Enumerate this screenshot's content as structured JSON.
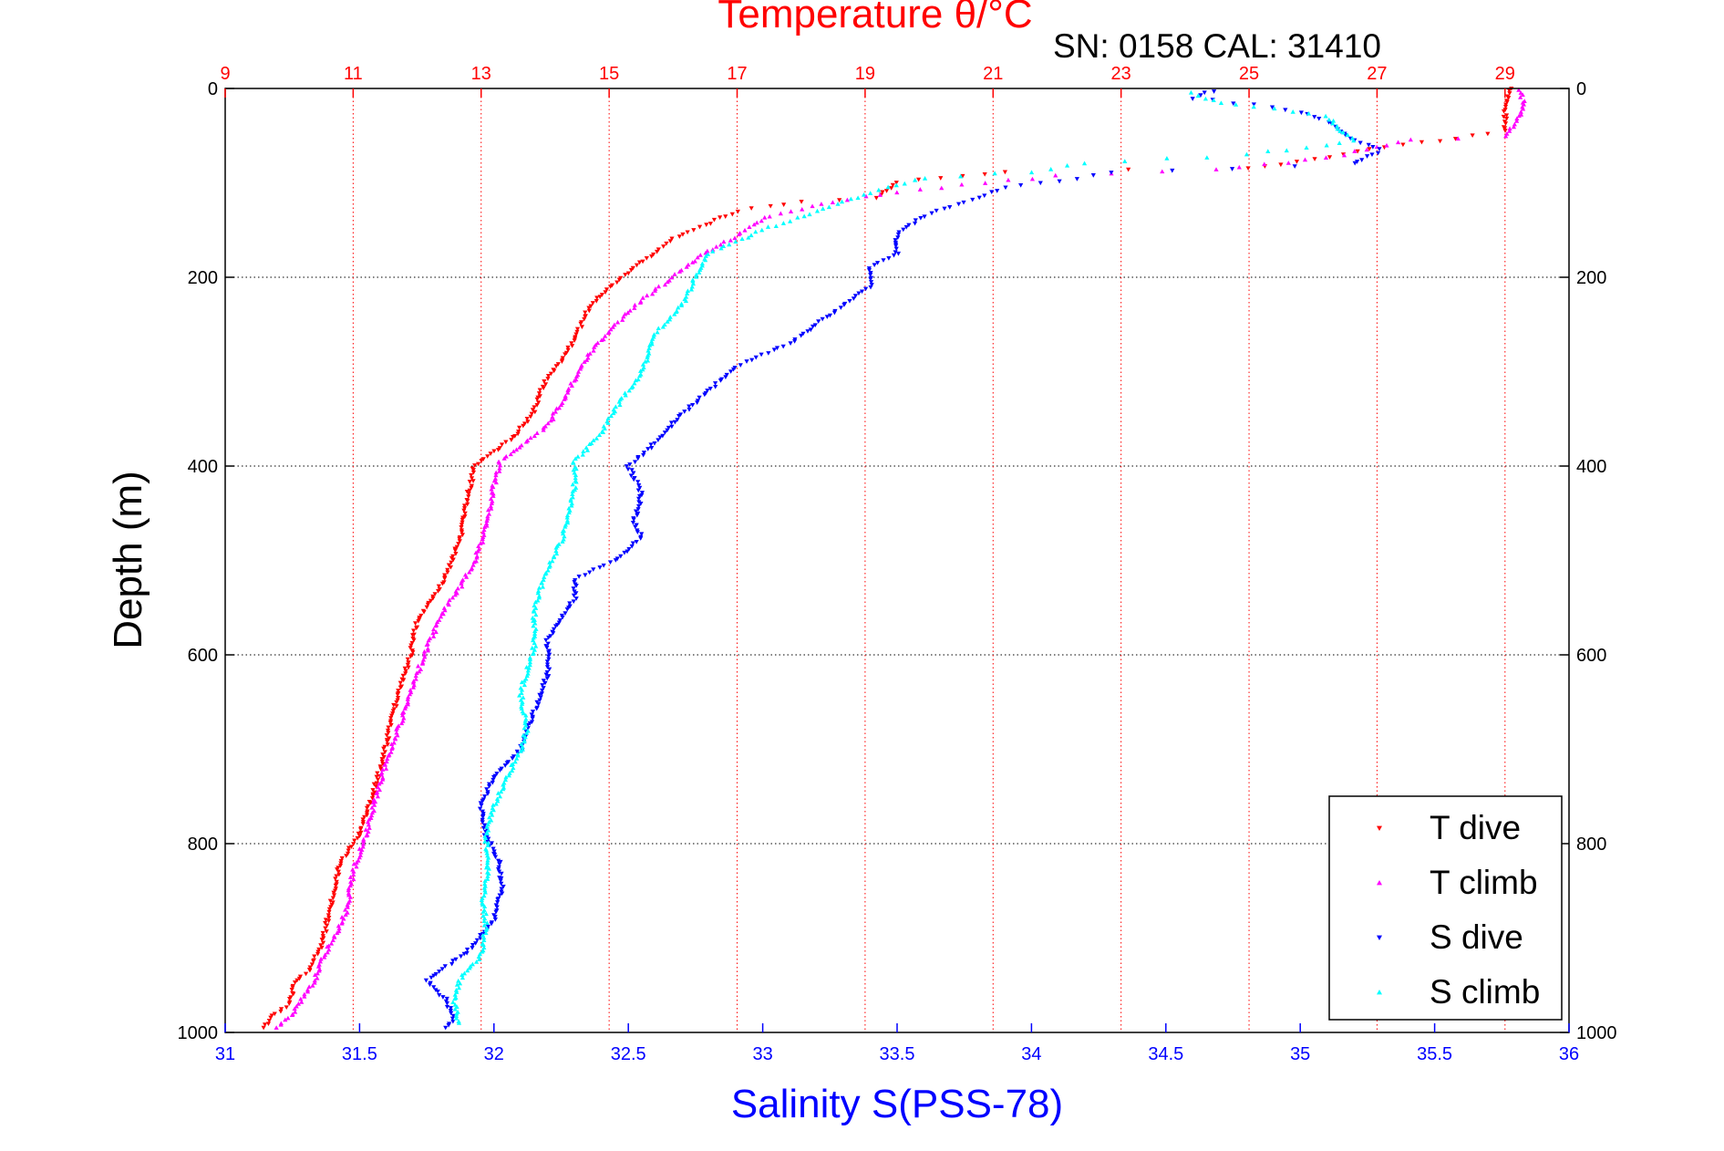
{
  "chart_data": {
    "type": "scatter",
    "annotation": "SN: 0158  CAL: 31410",
    "title": "Temperature θ/°C",
    "ylabel": "Depth (m)",
    "xlabel": "Salinity S(PSS-78)",
    "y_axis": {
      "range": [
        0,
        1000
      ],
      "inverted": true,
      "ticks": [
        0,
        200,
        400,
        600,
        800,
        1000
      ],
      "tick_labels": [
        "0",
        "200",
        "400",
        "600",
        "800",
        "1000"
      ],
      "grid": true
    },
    "x_bottom": {
      "quantity": "salinity",
      "range": [
        31,
        36
      ],
      "ticks": [
        31,
        31.5,
        32,
        32.5,
        33,
        33.5,
        34,
        34.5,
        35,
        35.5,
        36
      ],
      "tick_labels": [
        "31",
        "31.5",
        "32",
        "32.5",
        "33",
        "33.5",
        "34",
        "34.5",
        "35",
        "35.5",
        "36"
      ],
      "color": "#0000ff"
    },
    "x_top": {
      "quantity": "temperature",
      "range": [
        9,
        30
      ],
      "ticks": [
        9,
        11,
        13,
        15,
        17,
        19,
        21,
        23,
        25,
        27,
        29
      ],
      "tick_labels": [
        "9",
        "11",
        "13",
        "15",
        "17",
        "19",
        "21",
        "23",
        "25",
        "27",
        "29"
      ],
      "color": "#ff0000",
      "grid": true
    },
    "legend": {
      "position": "bottom-right",
      "entries": [
        {
          "label": "T dive",
          "marker": "triangle-down",
          "color": "#ff0000"
        },
        {
          "label": "T climb",
          "marker": "triangle-up",
          "color": "#ff00ff"
        },
        {
          "label": "S dive",
          "marker": "triangle-down",
          "color": "#0000ff"
        },
        {
          "label": "S climb",
          "marker": "triangle-up",
          "color": "#00ffff"
        }
      ]
    },
    "series": [
      {
        "name": "T dive",
        "axis": "x_top",
        "marker": "triangle-down",
        "color": "#ff0000",
        "points": [
          [
            29.1,
            0
          ],
          [
            29.0,
            20
          ],
          [
            29.0,
            45
          ],
          [
            28.0,
            55
          ],
          [
            27.1,
            62
          ],
          [
            26.5,
            70
          ],
          [
            25.0,
            85
          ],
          [
            21.2,
            88
          ],
          [
            20.5,
            92
          ],
          [
            19.5,
            100
          ],
          [
            19.2,
            115
          ],
          [
            18.0,
            120
          ],
          [
            17.0,
            130
          ],
          [
            16.5,
            145
          ],
          [
            16.0,
            160
          ],
          [
            15.6,
            180
          ],
          [
            15.3,
            195
          ],
          [
            15.0,
            210
          ],
          [
            14.7,
            230
          ],
          [
            14.5,
            260
          ],
          [
            14.3,
            285
          ],
          [
            14.0,
            310
          ],
          [
            13.8,
            345
          ],
          [
            13.5,
            370
          ],
          [
            13.2,
            385
          ],
          [
            12.9,
            400
          ],
          [
            12.8,
            430
          ],
          [
            12.7,
            470
          ],
          [
            12.5,
            510
          ],
          [
            12.2,
            545
          ],
          [
            12.0,
            565
          ],
          [
            11.9,
            600
          ],
          [
            11.7,
            640
          ],
          [
            11.5,
            700
          ],
          [
            11.3,
            750
          ],
          [
            11.1,
            790
          ],
          [
            10.8,
            820
          ],
          [
            10.7,
            850
          ],
          [
            10.6,
            880
          ],
          [
            10.5,
            910
          ],
          [
            10.3,
            935
          ],
          [
            10.1,
            945
          ],
          [
            10.0,
            970
          ],
          [
            9.7,
            985
          ],
          [
            9.6,
            995
          ]
        ]
      },
      {
        "name": "T climb",
        "axis": "x_top",
        "marker": "triangle-up",
        "color": "#ff00ff",
        "points": [
          [
            29.2,
            0
          ],
          [
            29.3,
            15
          ],
          [
            29.2,
            35
          ],
          [
            29.0,
            50
          ],
          [
            27.5,
            55
          ],
          [
            27.0,
            62
          ],
          [
            26.5,
            70
          ],
          [
            25.6,
            78
          ],
          [
            24.5,
            85
          ],
          [
            22.0,
            93
          ],
          [
            20.5,
            102
          ],
          [
            19.5,
            110
          ],
          [
            18.5,
            120
          ],
          [
            17.5,
            135
          ],
          [
            17.0,
            155
          ],
          [
            16.5,
            175
          ],
          [
            16.0,
            200
          ],
          [
            15.5,
            225
          ],
          [
            15.1,
            250
          ],
          [
            14.7,
            280
          ],
          [
            14.4,
            315
          ],
          [
            14.2,
            340
          ],
          [
            14.0,
            360
          ],
          [
            13.6,
            380
          ],
          [
            13.3,
            395
          ],
          [
            13.2,
            420
          ],
          [
            13.1,
            460
          ],
          [
            12.9,
            500
          ],
          [
            12.7,
            525
          ],
          [
            12.4,
            555
          ],
          [
            12.2,
            585
          ],
          [
            12.0,
            620
          ],
          [
            11.8,
            660
          ],
          [
            11.6,
            700
          ],
          [
            11.4,
            740
          ],
          [
            11.2,
            790
          ],
          [
            11.0,
            830
          ],
          [
            10.9,
            870
          ],
          [
            10.7,
            900
          ],
          [
            10.5,
            925
          ],
          [
            10.4,
            945
          ],
          [
            10.2,
            965
          ],
          [
            10.0,
            985
          ],
          [
            9.8,
            995
          ]
        ]
      },
      {
        "name": "S dive",
        "axis": "x_bottom",
        "marker": "triangle-down",
        "color": "#0000ff",
        "points": [
          [
            34.7,
            0
          ],
          [
            34.6,
            10
          ],
          [
            34.9,
            20
          ],
          [
            35.0,
            25
          ],
          [
            35.1,
            35
          ],
          [
            35.2,
            55
          ],
          [
            35.3,
            65
          ],
          [
            35.2,
            80
          ],
          [
            34.3,
            90
          ],
          [
            33.9,
            105
          ],
          [
            33.6,
            135
          ],
          [
            33.5,
            155
          ],
          [
            33.5,
            175
          ],
          [
            33.4,
            190
          ],
          [
            33.4,
            210
          ],
          [
            33.3,
            230
          ],
          [
            33.2,
            250
          ],
          [
            33.1,
            270
          ],
          [
            32.9,
            295
          ],
          [
            32.8,
            320
          ],
          [
            32.7,
            345
          ],
          [
            32.6,
            375
          ],
          [
            32.5,
            400
          ],
          [
            32.55,
            430
          ],
          [
            32.52,
            460
          ],
          [
            32.55,
            475
          ],
          [
            32.45,
            500
          ],
          [
            32.3,
            520
          ],
          [
            32.3,
            540
          ],
          [
            32.25,
            560
          ],
          [
            32.2,
            585
          ],
          [
            32.2,
            620
          ],
          [
            32.15,
            660
          ],
          [
            32.1,
            700
          ],
          [
            32.0,
            730
          ],
          [
            31.95,
            760
          ],
          [
            31.97,
            790
          ],
          [
            32.02,
            820
          ],
          [
            32.03,
            850
          ],
          [
            32.0,
            880
          ],
          [
            31.9,
            915
          ],
          [
            31.8,
            935
          ],
          [
            31.75,
            945
          ],
          [
            31.82,
            965
          ],
          [
            31.85,
            985
          ],
          [
            31.82,
            995
          ]
        ]
      },
      {
        "name": "S climb",
        "axis": "x_bottom",
        "marker": "triangle-up",
        "color": "#00ffff",
        "points": [
          [
            34.6,
            5
          ],
          [
            34.7,
            15
          ],
          [
            34.9,
            22
          ],
          [
            35.1,
            30
          ],
          [
            35.15,
            45
          ],
          [
            35.2,
            55
          ],
          [
            35.1,
            60
          ],
          [
            34.8,
            70
          ],
          [
            34.2,
            80
          ],
          [
            34.0,
            88
          ],
          [
            33.6,
            95
          ],
          [
            33.4,
            110
          ],
          [
            33.2,
            130
          ],
          [
            33.0,
            150
          ],
          [
            32.8,
            175
          ],
          [
            32.75,
            200
          ],
          [
            32.7,
            230
          ],
          [
            32.6,
            260
          ],
          [
            32.55,
            300
          ],
          [
            32.45,
            340
          ],
          [
            32.4,
            365
          ],
          [
            32.3,
            395
          ],
          [
            32.3,
            420
          ],
          [
            32.28,
            450
          ],
          [
            32.25,
            480
          ],
          [
            32.2,
            510
          ],
          [
            32.15,
            550
          ],
          [
            32.15,
            590
          ],
          [
            32.1,
            640
          ],
          [
            32.12,
            680
          ],
          [
            32.1,
            700
          ],
          [
            32.05,
            730
          ],
          [
            32.0,
            760
          ],
          [
            31.97,
            790
          ],
          [
            31.98,
            820
          ],
          [
            31.96,
            860
          ],
          [
            31.97,
            890
          ],
          [
            31.95,
            920
          ],
          [
            31.88,
            940
          ],
          [
            31.85,
            965
          ],
          [
            31.87,
            990
          ]
        ]
      }
    ]
  }
}
